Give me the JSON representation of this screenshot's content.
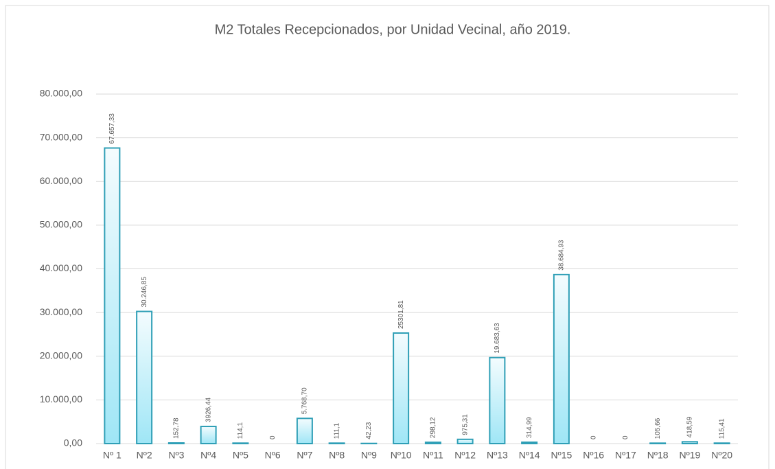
{
  "chart_data": {
    "type": "bar",
    "title": "M2 Totales Recepcionados,  por Unidad Vecinal, año 2019.",
    "categories": [
      "Nº 1",
      "Nº2",
      "Nº3",
      "Nº4",
      "Nº5",
      "Nº6",
      "Nº7",
      "Nº8",
      "Nº9",
      "Nº10",
      "Nº11",
      "Nº12",
      "Nº13",
      "Nº14",
      "Nº15",
      "Nº16",
      "Nº17",
      "Nº18",
      "Nº19",
      "Nº20"
    ],
    "values": [
      67657.33,
      30246.85,
      152.78,
      3926.44,
      114.1,
      0,
      5768.7,
      111.1,
      42.23,
      25301.81,
      298.12,
      975.31,
      19683.63,
      314.99,
      38684.93,
      0,
      0,
      105.66,
      418.59,
      115.41
    ],
    "value_labels": [
      "67.657,33",
      "30.246,85",
      "152,78",
      "3926,44",
      "114,1",
      "0",
      "5.768,70",
      "111,1",
      "42,23",
      "25301,81",
      "298,12",
      "975,31",
      "19.683,63",
      "314,99",
      "38.684,93",
      "0",
      "0",
      "105,66",
      "418,59",
      "115,41"
    ],
    "color": "#9fe6f6",
    "ylim": [
      0,
      80000
    ],
    "yticks": [
      {
        "value": 0,
        "label": "0,00"
      },
      {
        "value": 10000,
        "label": "10.000,00"
      },
      {
        "value": 20000,
        "label": "20.000,00"
      },
      {
        "value": 30000,
        "label": "30.000,00"
      },
      {
        "value": 40000,
        "label": "40.000,00"
      },
      {
        "value": 50000,
        "label": "50.000,00"
      },
      {
        "value": 60000,
        "label": "60.000,00"
      },
      {
        "value": 70000,
        "label": "70.000,00"
      },
      {
        "value": 80000,
        "label": "80.000,00"
      }
    ],
    "grid": true
  }
}
